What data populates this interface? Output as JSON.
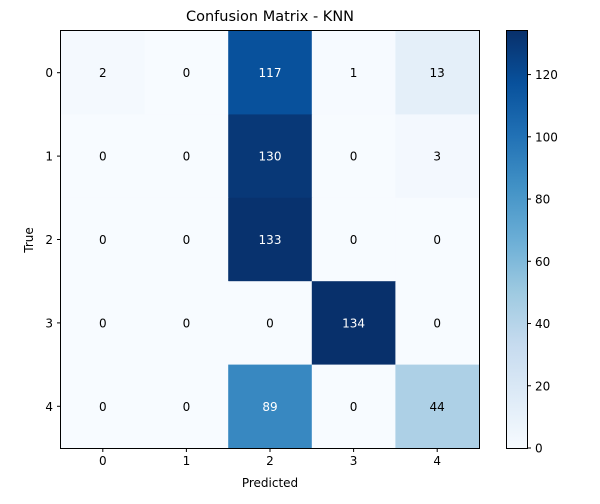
{
  "chart_data": {
    "type": "heatmap",
    "title": "Confusion Matrix - KNN",
    "xlabel": "Predicted",
    "ylabel": "True",
    "x_categories": [
      "0",
      "1",
      "2",
      "3",
      "4"
    ],
    "y_categories": [
      "0",
      "1",
      "2",
      "3",
      "4"
    ],
    "values": [
      [
        2,
        0,
        117,
        1,
        13
      ],
      [
        0,
        0,
        130,
        0,
        3
      ],
      [
        0,
        0,
        133,
        0,
        0
      ],
      [
        0,
        0,
        0,
        134,
        0
      ],
      [
        0,
        0,
        89,
        0,
        44
      ]
    ],
    "colormap": "Blues",
    "vmin": 0,
    "vmax": 134,
    "colorbar_ticks": [
      0,
      20,
      40,
      60,
      80,
      100,
      120
    ],
    "grid": false,
    "annotation_threshold": 67,
    "colors": {
      "text_light": "#ffffff",
      "text_dark": "#000000",
      "axis": "#000000"
    }
  }
}
